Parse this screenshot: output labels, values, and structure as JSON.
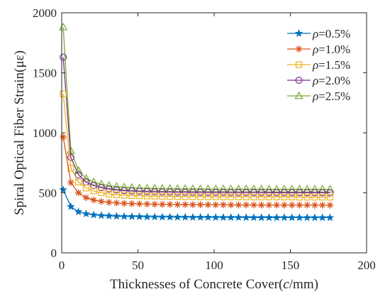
{
  "chart_data": {
    "type": "line",
    "title": "",
    "xlabel": "Thicknesses of Concrete Cover(",
    "xlabel_var": "c",
    "xlabel_unit": "/mm)",
    "ylabel": "Spiral Optical Fiber Strain(με)",
    "xlim": [
      0,
      200
    ],
    "ylim": [
      0,
      2000
    ],
    "xticks": [
      "0",
      "50",
      "100",
      "150",
      "200"
    ],
    "yticks": [
      "0",
      "500",
      "1000",
      "1500",
      "2000"
    ],
    "grid": false,
    "legend_position": "top-right",
    "x": [
      1,
      6,
      11,
      16,
      21,
      26,
      31,
      36,
      41,
      46,
      51,
      56,
      61,
      66,
      71,
      76,
      81,
      86,
      91,
      96,
      101,
      106,
      111,
      116,
      121,
      126,
      131,
      136,
      141,
      146,
      151,
      156,
      161,
      166,
      171,
      176
    ],
    "series": [
      {
        "name": "ρ=0.5%",
        "symbol": "ρ",
        "label_value": "=0.5%",
        "color": "#0072BD",
        "marker": "star",
        "values": [
          525,
          385,
          342,
          325,
          316,
          311,
          308,
          305,
          303,
          302,
          301,
          300,
          299,
          298,
          298,
          297,
          297,
          296,
          296,
          296,
          295,
          295,
          295,
          295,
          294,
          294,
          294,
          294,
          294,
          294,
          293,
          293,
          293,
          293,
          293,
          293
        ]
      },
      {
        "name": "ρ=1.0%",
        "symbol": "ρ",
        "label_value": "=1.0%",
        "color": "#D95319",
        "marker": "asterisk",
        "values": [
          965,
          585,
          500,
          460,
          440,
          428,
          421,
          416,
          412,
          410,
          408,
          406,
          405,
          404,
          403,
          402,
          402,
          401,
          401,
          400,
          400,
          400,
          399,
          399,
          399,
          399,
          398,
          398,
          398,
          398,
          398,
          398,
          398,
          397,
          397,
          397
        ]
      },
      {
        "name": "ρ=1.5%",
        "symbol": "ρ",
        "label_value": "=1.5%",
        "color": "#EDB120",
        "marker": "square",
        "values": [
          1325,
          705,
          590,
          540,
          515,
          500,
          490,
          484,
          480,
          477,
          475,
          473,
          472,
          471,
          470,
          469,
          468,
          468,
          467,
          467,
          467,
          466,
          466,
          466,
          466,
          465,
          465,
          465,
          465,
          465,
          465,
          464,
          464,
          464,
          464,
          464
        ]
      },
      {
        "name": "ρ=2.0%",
        "symbol": "ρ",
        "label_value": "=2.0%",
        "color": "#7E2F8E",
        "marker": "circle",
        "values": [
          1630,
          795,
          650,
          590,
          560,
          543,
          531,
          523,
          518,
          515,
          512,
          510,
          508,
          507,
          506,
          505,
          505,
          504,
          504,
          503,
          503,
          503,
          502,
          502,
          502,
          502,
          502,
          501,
          501,
          501,
          501,
          501,
          501,
          501,
          501,
          500
        ]
      },
      {
        "name": "ρ=2.5%",
        "symbol": "ρ",
        "label_value": "=2.5%",
        "color": "#77AC30",
        "marker": "triangle",
        "values": [
          1880,
          850,
          685,
          620,
          590,
          572,
          560,
          552,
          547,
          543,
          540,
          538,
          537,
          536,
          535,
          534,
          534,
          533,
          533,
          532,
          532,
          532,
          531,
          531,
          531,
          531,
          531,
          530,
          530,
          530,
          530,
          530,
          530,
          530,
          530,
          529
        ]
      }
    ]
  }
}
